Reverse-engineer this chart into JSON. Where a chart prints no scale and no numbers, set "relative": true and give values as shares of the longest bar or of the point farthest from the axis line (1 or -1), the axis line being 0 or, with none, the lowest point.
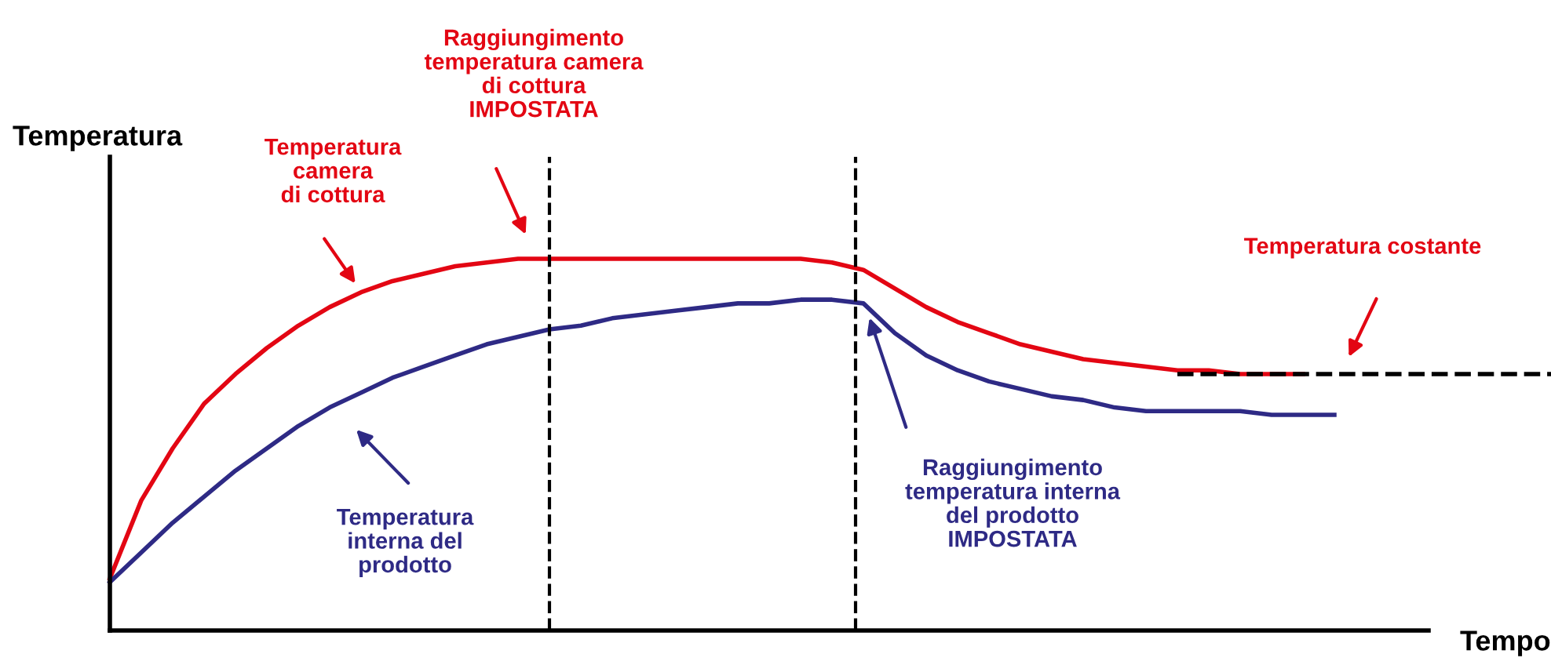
{
  "chart_data": {
    "type": "line",
    "relative": true,
    "xlabel": "Tempo",
    "ylabel": "Temperatura",
    "categories": [
      null,
      null,
      null,
      null,
      null,
      null,
      null,
      null,
      null,
      null,
      null,
      null,
      null,
      null,
      null,
      null,
      null,
      null,
      null,
      null,
      null,
      null,
      null,
      null,
      null,
      null,
      null,
      null,
      null,
      null,
      null,
      null,
      null,
      null,
      null,
      null,
      null,
      null,
      null,
      null,
      null,
      null,
      null,
      null,
      null,
      null,
      null
    ],
    "series": [
      {
        "color": "#e30613",
        "values": [
          0.14,
          0.35,
          0.49,
          0.61,
          0.69,
          0.76,
          0.82,
          0.87,
          0.91,
          0.94,
          0.96,
          0.98,
          0.99,
          1.0,
          1.0,
          1.0,
          1.0,
          1.0,
          1.0,
          1.0,
          1.0,
          1.0,
          1.0,
          0.99,
          0.97,
          0.92,
          0.87,
          0.83,
          0.8,
          0.77,
          0.75,
          0.73,
          0.72,
          0.71,
          0.7,
          0.7,
          0.69,
          0.69,
          0.69,
          null,
          null,
          null,
          null,
          null,
          null,
          null,
          null
        ]
      },
      {
        "color": "#2e2a85",
        "values": [
          0.13,
          0.21,
          0.29,
          0.36,
          0.43,
          0.49,
          0.55,
          0.6,
          0.64,
          0.68,
          0.71,
          0.74,
          0.77,
          0.79,
          0.81,
          0.82,
          0.84,
          0.85,
          0.86,
          0.87,
          0.88,
          0.88,
          0.89,
          0.89,
          0.88,
          0.8,
          0.74,
          0.7,
          0.67,
          0.65,
          0.63,
          0.62,
          0.6,
          0.59,
          0.59,
          0.59,
          0.59,
          0.58,
          0.58,
          0.58,
          null,
          null,
          null,
          null,
          null,
          null,
          null
        ]
      },
      {
        "color": "#000000",
        "line_style": "dashed",
        "values": [
          null,
          null,
          null,
          null,
          null,
          null,
          null,
          null,
          null,
          null,
          null,
          null,
          null,
          null,
          null,
          null,
          null,
          null,
          null,
          null,
          null,
          null,
          null,
          null,
          null,
          null,
          null,
          null,
          null,
          null,
          null,
          null,
          null,
          null,
          0.69,
          0.69,
          0.69,
          0.69,
          0.69,
          0.69,
          0.69,
          0.69,
          0.69,
          0.69,
          0.69,
          0.69,
          0.69
        ]
      }
    ],
    "annotations": [
      "Temperatura\ncamera\ndi cottura",
      "Raggiungimento\ntemperatura camera\ndi cottura\nIMPOSTATA",
      "Temperatura costante",
      "Temperatura\ninterna del\nprodotto",
      "Raggiungimento\ntemperatura interna\ndel prodotto\nIMPOSTATA"
    ],
    "line_style": "solid",
    "marker": "none",
    "legend": false
  }
}
